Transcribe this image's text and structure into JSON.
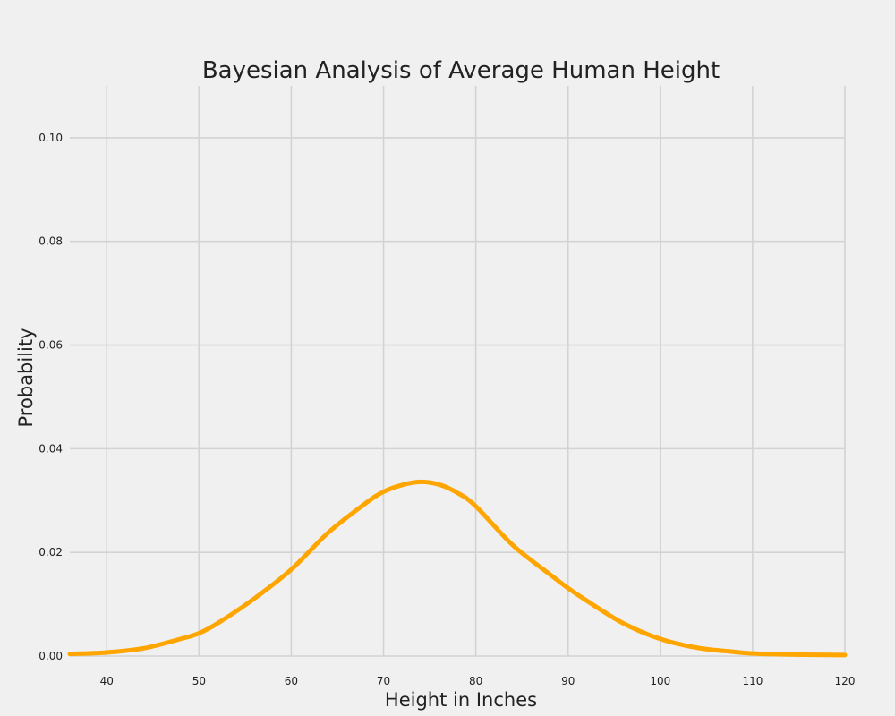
{
  "chart_data": {
    "type": "line",
    "title": "Bayesian Analysis of Average Human Height",
    "xlabel": "Height in Inches",
    "ylabel": "Probability",
    "xlim": [
      36,
      120
    ],
    "ylim": [
      0,
      0.11
    ],
    "xticks": [
      40,
      50,
      60,
      70,
      80,
      90,
      100,
      110,
      120
    ],
    "xtick_labels": [
      "40",
      "50",
      "60",
      "70",
      "80",
      "90",
      "100",
      "110",
      "120"
    ],
    "yticks": [
      0.0,
      0.02,
      0.04,
      0.06,
      0.08,
      0.1
    ],
    "ytick_labels": [
      "0.00",
      "0.02",
      "0.04",
      "0.06",
      "0.08",
      "0.10"
    ],
    "grid": true,
    "legend": false,
    "colors": {
      "background": "#f0f0f0",
      "line": "#ffa500",
      "grid": "#d3d3d3"
    },
    "series": [
      {
        "x": [
          36,
          40,
          44,
          48,
          50,
          52,
          56,
          60,
          64,
          68,
          70,
          72,
          74,
          76,
          78,
          80,
          84,
          88,
          90,
          92,
          96,
          100,
          104,
          108,
          110,
          114,
          120
        ],
        "y": [
          0.0004,
          0.0007,
          0.0015,
          0.0033,
          0.0044,
          0.0063,
          0.0111,
          0.0167,
          0.0238,
          0.0294,
          0.0317,
          0.033,
          0.0336,
          0.0331,
          0.0315,
          0.0289,
          0.0214,
          0.0158,
          0.0131,
          0.0107,
          0.0063,
          0.0033,
          0.0016,
          0.0008,
          0.0005,
          0.0003,
          0.0002
        ]
      }
    ]
  }
}
